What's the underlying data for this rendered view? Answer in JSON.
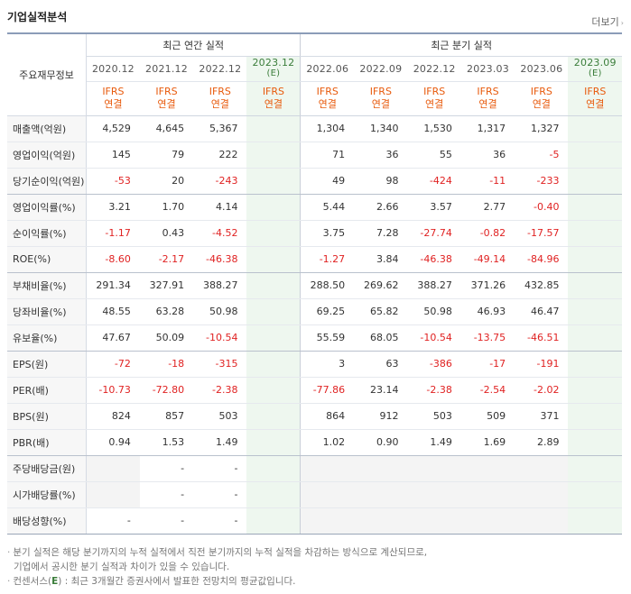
{
  "header": {
    "title": "기업실적분석",
    "more_label": "더보기"
  },
  "table": {
    "row_header_label": "주요재무정보",
    "group_annual": "최근 연간 실적",
    "group_quarter": "최근 분기 실적",
    "periods": [
      {
        "label": "2020.12",
        "est": "",
        "ifrs": "IFRS",
        "basis": "연결"
      },
      {
        "label": "2021.12",
        "est": "",
        "ifrs": "IFRS",
        "basis": "연결"
      },
      {
        "label": "2022.12",
        "est": "",
        "ifrs": "IFRS",
        "basis": "연결"
      },
      {
        "label": "2023.12",
        "est": "(E)",
        "ifrs": "IFRS",
        "basis": "연결"
      },
      {
        "label": "2022.06",
        "est": "",
        "ifrs": "IFRS",
        "basis": "연결"
      },
      {
        "label": "2022.09",
        "est": "",
        "ifrs": "IFRS",
        "basis": "연결"
      },
      {
        "label": "2022.12",
        "est": "",
        "ifrs": "IFRS",
        "basis": "연결"
      },
      {
        "label": "2023.03",
        "est": "",
        "ifrs": "IFRS",
        "basis": "연결"
      },
      {
        "label": "2023.06",
        "est": "",
        "ifrs": "IFRS",
        "basis": "연결"
      },
      {
        "label": "2023.09",
        "est": "(E)",
        "ifrs": "IFRS",
        "basis": "연결"
      }
    ],
    "rows": [
      {
        "label": "매출액(억원)",
        "values": [
          "4,529",
          "4,645",
          "5,367",
          "",
          "1,304",
          "1,340",
          "1,530",
          "1,317",
          "1,327",
          ""
        ]
      },
      {
        "label": "영업이익(억원)",
        "values": [
          "145",
          "79",
          "222",
          "",
          "71",
          "36",
          "55",
          "36",
          "-5",
          ""
        ]
      },
      {
        "label": "당기순이익(억원)",
        "values": [
          "-53",
          "20",
          "-243",
          "",
          "49",
          "98",
          "-424",
          "-11",
          "-233",
          ""
        ]
      },
      {
        "label": "영업이익률(%)",
        "values": [
          "3.21",
          "1.70",
          "4.14",
          "",
          "5.44",
          "2.66",
          "3.57",
          "2.77",
          "-0.40",
          ""
        ]
      },
      {
        "label": "순이익률(%)",
        "values": [
          "-1.17",
          "0.43",
          "-4.52",
          "",
          "3.75",
          "7.28",
          "-27.74",
          "-0.82",
          "-17.57",
          ""
        ]
      },
      {
        "label": "ROE(%)",
        "values": [
          "-8.60",
          "-2.17",
          "-46.38",
          "",
          "-1.27",
          "3.84",
          "-46.38",
          "-49.14",
          "-84.96",
          ""
        ]
      },
      {
        "label": "부채비율(%)",
        "values": [
          "291.34",
          "327.91",
          "388.27",
          "",
          "288.50",
          "269.62",
          "388.27",
          "371.26",
          "432.85",
          ""
        ]
      },
      {
        "label": "당좌비율(%)",
        "values": [
          "48.55",
          "63.28",
          "50.98",
          "",
          "69.25",
          "65.82",
          "50.98",
          "46.93",
          "46.47",
          ""
        ]
      },
      {
        "label": "유보율(%)",
        "values": [
          "47.67",
          "50.09",
          "-10.54",
          "",
          "55.59",
          "68.05",
          "-10.54",
          "-13.75",
          "-46.51",
          ""
        ]
      },
      {
        "label": "EPS(원)",
        "values": [
          "-72",
          "-18",
          "-315",
          "",
          "3",
          "63",
          "-386",
          "-17",
          "-191",
          ""
        ]
      },
      {
        "label": "PER(배)",
        "values": [
          "-10.73",
          "-72.80",
          "-2.38",
          "",
          "-77.86",
          "23.14",
          "-2.38",
          "-2.54",
          "-2.02",
          ""
        ]
      },
      {
        "label": "BPS(원)",
        "values": [
          "824",
          "857",
          "503",
          "",
          "864",
          "912",
          "503",
          "509",
          "371",
          ""
        ]
      },
      {
        "label": "PBR(배)",
        "values": [
          "0.94",
          "1.53",
          "1.49",
          "",
          "1.02",
          "0.90",
          "1.49",
          "1.69",
          "2.89",
          ""
        ]
      },
      {
        "label": "주당배당금(원)",
        "values": [
          "",
          "-",
          "-",
          "",
          "",
          "",
          "",
          "",
          "",
          ""
        ]
      },
      {
        "label": "시가배당률(%)",
        "values": [
          "",
          "-",
          "-",
          "",
          "",
          "",
          "",
          "",
          "",
          ""
        ]
      },
      {
        "label": "배당성향(%)",
        "values": [
          "-",
          "-",
          "-",
          "",
          "",
          "",
          "",
          "",
          "",
          ""
        ]
      }
    ]
  },
  "notes": {
    "line1": "분기 실적은 해당 분기까지의 누적 실적에서 직전 분기까지의 누적 실적을 차감하는 방식으로 계산되므로,",
    "line2": "기업에서 공시한 분기 실적과 차이가 있을 수 있습니다.",
    "line3_pre": "컨센서스(",
    "line3_e": "E",
    "line3_post": ") : 최근 3개월간 증권사에서 발표한 전망치의 평균값입니다."
  },
  "colors": {
    "negative": "#e02222",
    "ifrs": "#e85a0c",
    "estimate": "#3a7d3a"
  }
}
